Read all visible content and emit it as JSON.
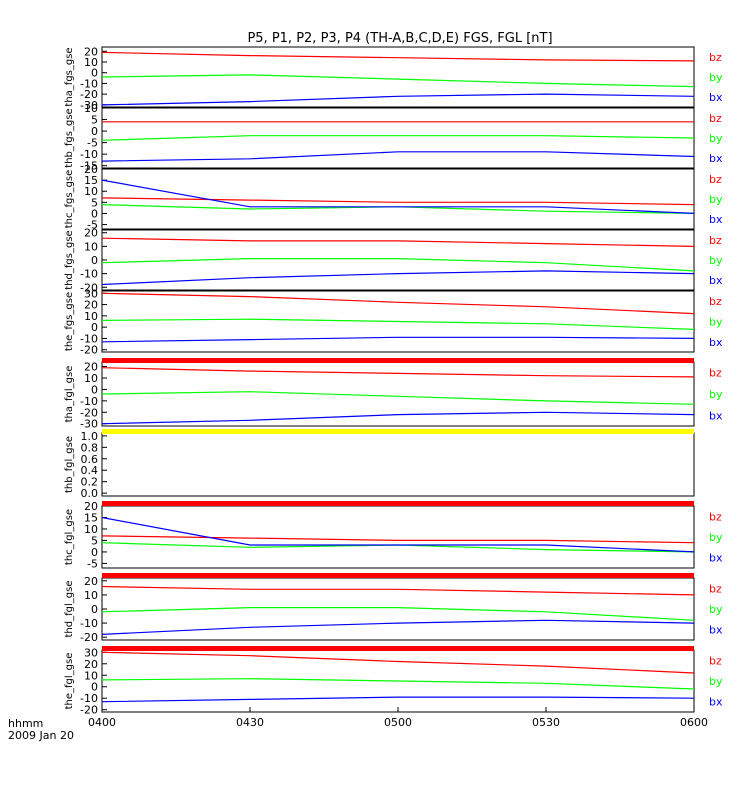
{
  "title": "P5, P1, P2, P3, P4 (TH-A,B,C,D,E) FGS, FGL [nT]",
  "footer": {
    "time_unit": "hhmm",
    "date": "2009 Jan 20"
  },
  "x_axis": {
    "tick_labels": [
      "0400",
      "0430",
      "0500",
      "0530",
      "0600"
    ],
    "range_minutes": [
      0,
      120
    ]
  },
  "chart_data": [
    {
      "type": "line",
      "ylabel": "tha_fgs_gse",
      "ylim": [
        -32,
        24
      ],
      "ytick_values": [
        20,
        10,
        0,
        -10,
        -20,
        -30
      ],
      "series": [
        {
          "name": "bz",
          "color": "#ff0000",
          "x_min": [
            0,
            30,
            60,
            90,
            120
          ],
          "values": [
            19,
            16,
            14,
            12,
            11
          ]
        },
        {
          "name": "by",
          "color": "#00ff00",
          "x_min": [
            0,
            30,
            60,
            90,
            120
          ],
          "values": [
            -4,
            -2,
            -6,
            -10,
            -13
          ]
        },
        {
          "name": "bx",
          "color": "#0000ff",
          "x_min": [
            0,
            30,
            60,
            90,
            120
          ],
          "values": [
            -30,
            -27,
            -22,
            -20,
            -22
          ]
        }
      ]
    },
    {
      "type": "line",
      "ylabel": "thb_fgs_gse",
      "ylim": [
        -16,
        10
      ],
      "ytick_values": [
        10,
        5,
        0,
        -5,
        -10,
        -15
      ],
      "series": [
        {
          "name": "bz",
          "color": "#ff0000",
          "x_min": [
            0,
            30,
            60,
            90,
            120
          ],
          "values": [
            4,
            4,
            4,
            4,
            4
          ]
        },
        {
          "name": "by",
          "color": "#00ff00",
          "x_min": [
            0,
            30,
            60,
            90,
            120
          ],
          "values": [
            -4,
            -2,
            -2,
            -2,
            -3
          ]
        },
        {
          "name": "bx",
          "color": "#0000ff",
          "x_min": [
            0,
            30,
            60,
            90,
            120
          ],
          "values": [
            -13,
            -12,
            -9,
            -9,
            -11
          ]
        }
      ]
    },
    {
      "type": "line",
      "ylabel": "thc_fgs_gse",
      "ylim": [
        -7,
        20
      ],
      "ytick_values": [
        20,
        15,
        10,
        5,
        0,
        -5
      ],
      "series": [
        {
          "name": "bz",
          "color": "#ff0000",
          "x_min": [
            0,
            30,
            60,
            90,
            120
          ],
          "values": [
            7,
            6,
            5,
            5,
            4
          ]
        },
        {
          "name": "by",
          "color": "#00ff00",
          "x_min": [
            0,
            30,
            60,
            90,
            120
          ],
          "values": [
            4,
            2,
            3,
            1,
            0
          ]
        },
        {
          "name": "bx",
          "color": "#0000ff",
          "x_min": [
            0,
            30,
            60,
            90,
            120
          ],
          "values": [
            15,
            3,
            3,
            3,
            0
          ]
        }
      ]
    },
    {
      "type": "line",
      "ylabel": "thd_fgs_gse",
      "ylim": [
        -22,
        22
      ],
      "ytick_values": [
        20,
        10,
        0,
        -10,
        -20
      ],
      "series": [
        {
          "name": "bz",
          "color": "#ff0000",
          "x_min": [
            0,
            30,
            60,
            90,
            120
          ],
          "values": [
            16,
            14,
            14,
            12,
            10
          ]
        },
        {
          "name": "by",
          "color": "#00ff00",
          "x_min": [
            0,
            30,
            60,
            90,
            120
          ],
          "values": [
            -2,
            1,
            1,
            -2,
            -8
          ]
        },
        {
          "name": "bx",
          "color": "#0000ff",
          "x_min": [
            0,
            30,
            60,
            90,
            120
          ],
          "values": [
            -18,
            -13,
            -10,
            -8,
            -10
          ]
        }
      ]
    },
    {
      "type": "line",
      "ylabel": "the_fgs_gse",
      "ylim": [
        -22,
        32
      ],
      "ytick_values": [
        30,
        20,
        10,
        0,
        -10,
        -20
      ],
      "series": [
        {
          "name": "bz",
          "color": "#ff0000",
          "x_min": [
            0,
            30,
            60,
            90,
            120
          ],
          "values": [
            30,
            27,
            22,
            18,
            12
          ]
        },
        {
          "name": "by",
          "color": "#00ff00",
          "x_min": [
            0,
            30,
            60,
            90,
            120
          ],
          "values": [
            6,
            7,
            5,
            3,
            -2
          ]
        },
        {
          "name": "bx",
          "color": "#0000ff",
          "x_min": [
            0,
            30,
            60,
            90,
            120
          ],
          "values": [
            -13,
            -11,
            -9,
            -9,
            -10
          ]
        }
      ]
    },
    {
      "type": "line",
      "ylabel": "tha_fgl_gse",
      "ylim": [
        -32,
        24
      ],
      "ytick_values": [
        20,
        10,
        0,
        -10,
        -20,
        -30
      ],
      "series": [
        {
          "name": "bz",
          "color": "#ff0000",
          "x_min": [
            0,
            30,
            60,
            90,
            120
          ],
          "values": [
            19,
            16,
            14,
            12,
            11
          ]
        },
        {
          "name": "by",
          "color": "#00ff00",
          "x_min": [
            0,
            30,
            60,
            90,
            120
          ],
          "values": [
            -4,
            -2,
            -6,
            -10,
            -13
          ]
        },
        {
          "name": "bx",
          "color": "#0000ff",
          "x_min": [
            0,
            30,
            60,
            90,
            120
          ],
          "values": [
            -30,
            -27,
            -22,
            -20,
            -22
          ]
        }
      ]
    },
    {
      "type": "line",
      "ylabel": "thb_fgl_gse",
      "ylim": [
        -0.05,
        1.05
      ],
      "ytick_values": [
        "1.0",
        "0.8",
        "0.6",
        "0.4",
        "0.2",
        "0.0"
      ],
      "series": []
    },
    {
      "type": "line",
      "ylabel": "thc_fgl_gse",
      "ylim": [
        -7,
        20
      ],
      "ytick_values": [
        20,
        15,
        10,
        5,
        0,
        -5
      ],
      "series": [
        {
          "name": "bz",
          "color": "#ff0000",
          "x_min": [
            0,
            30,
            60,
            90,
            120
          ],
          "values": [
            7,
            6,
            5,
            5,
            4
          ]
        },
        {
          "name": "by",
          "color": "#00ff00",
          "x_min": [
            0,
            30,
            60,
            90,
            120
          ],
          "values": [
            4,
            2,
            3,
            1,
            0
          ]
        },
        {
          "name": "bx",
          "color": "#0000ff",
          "x_min": [
            0,
            30,
            60,
            90,
            120
          ],
          "values": [
            15,
            3,
            3,
            3,
            0
          ]
        }
      ]
    },
    {
      "type": "line",
      "ylabel": "thd_fgl_gse",
      "ylim": [
        -22,
        22
      ],
      "ytick_values": [
        20,
        10,
        0,
        -10,
        -20
      ],
      "series": [
        {
          "name": "bz",
          "color": "#ff0000",
          "x_min": [
            0,
            30,
            60,
            90,
            120
          ],
          "values": [
            16,
            14,
            14,
            12,
            10
          ]
        },
        {
          "name": "by",
          "color": "#00ff00",
          "x_min": [
            0,
            30,
            60,
            90,
            120
          ],
          "values": [
            -2,
            1,
            1,
            -2,
            -8
          ]
        },
        {
          "name": "bx",
          "color": "#0000ff",
          "x_min": [
            0,
            30,
            60,
            90,
            120
          ],
          "values": [
            -18,
            -13,
            -10,
            -8,
            -10
          ]
        }
      ]
    },
    {
      "type": "line",
      "ylabel": "the_fgl_gse",
      "ylim": [
        -22,
        32
      ],
      "ytick_values": [
        30,
        20,
        10,
        0,
        -10,
        -20
      ],
      "series": [
        {
          "name": "bz",
          "color": "#ff0000",
          "x_min": [
            0,
            30,
            60,
            90,
            120
          ],
          "values": [
            30,
            27,
            22,
            18,
            12
          ]
        },
        {
          "name": "by",
          "color": "#00ff00",
          "x_min": [
            0,
            30,
            60,
            90,
            120
          ],
          "values": [
            6,
            7,
            5,
            3,
            -2
          ]
        },
        {
          "name": "bx",
          "color": "#0000ff",
          "x_min": [
            0,
            30,
            60,
            90,
            120
          ],
          "values": [
            -13,
            -11,
            -9,
            -9,
            -10
          ]
        }
      ]
    }
  ],
  "status_bars": [
    {
      "color": "#ff0000"
    },
    {
      "color": "#ffff00"
    },
    {
      "color": "#ff0000"
    },
    {
      "color": "#ff0000"
    },
    {
      "color": "#ff0000"
    }
  ]
}
